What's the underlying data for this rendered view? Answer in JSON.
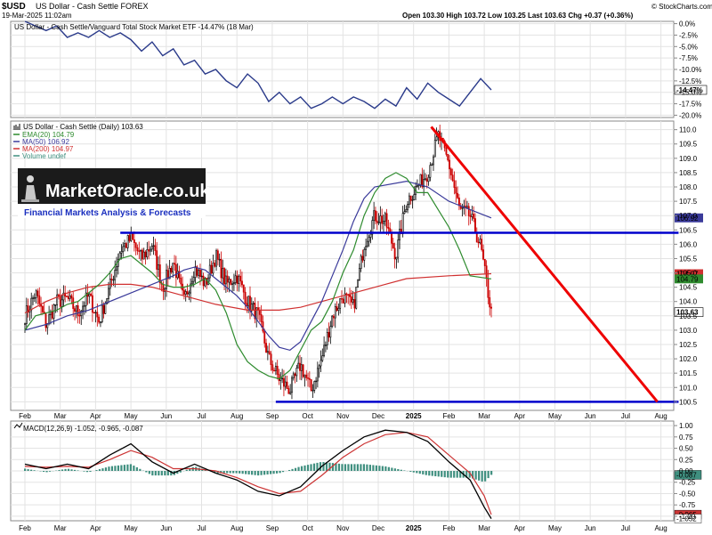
{
  "header": {
    "symbol": "$USD",
    "name": "US Dollar - Cash Settle FOREX",
    "date": "19-Mar-2025 11:02am",
    "quote": "Open 103.30  High 103.72  Low 103.25  Last 103.63  Chg +0.37 (+0.36%)",
    "credit": "© StockCharts.com"
  },
  "logo": {
    "brand": "MarketOracle.co.uk",
    "tagline": "Financial Markets Analysis & Forecasts"
  },
  "colors": {
    "price_up": "#000000",
    "price_down": "#cc0000",
    "ema20": "#2e8b2e",
    "ma50": "#3a3a9a",
    "ma200": "#d03030",
    "trend_red": "#ee0000",
    "support_blue": "#0000cc",
    "macd_line": "#000000",
    "signal_line": "#cc3333",
    "histogram": "#3f8f7f"
  },
  "chart_data": [
    {
      "type": "line",
      "panel": "relative-strength",
      "title": "US Dollar - Cash Settle/Vanguard Total Stock Market ETF -14.47% (18 Mar)",
      "y_ticks": [
        "0.0%",
        "-2.5%",
        "-5.0%",
        "-7.5%",
        "-10.0%",
        "-12.5%",
        "-15.0%",
        "-17.5%",
        "-20.0%"
      ],
      "ylim": [
        -20.5,
        0.5
      ],
      "last_label": "-14.47%",
      "series": [
        {
          "x": [
            0.0,
            0.3,
            0.6,
            0.9,
            1.2,
            1.5,
            1.8,
            2.1,
            2.4,
            2.7,
            3.0,
            3.3,
            3.6,
            3.9,
            4.2,
            4.5,
            4.8,
            5.1,
            5.4,
            5.7,
            6.0,
            6.3,
            6.6,
            6.9,
            7.2,
            7.5,
            7.8,
            8.1,
            8.4,
            8.7,
            9.0,
            9.3,
            9.6,
            9.9,
            10.2,
            10.5,
            10.8,
            11.1,
            11.4,
            11.7,
            12.0,
            12.3,
            12.6,
            12.9,
            13.2
          ],
          "values": [
            0.5,
            -0.5,
            -1.5,
            -0.5,
            -3.0,
            -2.0,
            -3.0,
            -1.5,
            -3.0,
            -2.0,
            -3.5,
            -6.0,
            -4.0,
            -7.0,
            -5.5,
            -9.0,
            -8.0,
            -11.0,
            -10.0,
            -12.5,
            -14.0,
            -11.0,
            -13.0,
            -17.0,
            -15.0,
            -17.5,
            -16.0,
            -18.5,
            -17.5,
            -16.0,
            -17.5,
            -16.0,
            -17.0,
            -18.5,
            -16.5,
            -18.0,
            -14.0,
            -16.5,
            -13.0,
            -15.0,
            -16.5,
            -18.0,
            -15.0,
            -12.0,
            -14.47
          ]
        }
      ]
    },
    {
      "type": "candlestick",
      "panel": "price",
      "title": "US Dollar - Cash Settle (Daily) 103.63",
      "legend": [
        {
          "label": "EMA(20) 104.79",
          "color": "#2e8b2e"
        },
        {
          "label": "MA(50) 106.92",
          "color": "#3a3a9a"
        },
        {
          "label": "MA(200) 104.97",
          "color": "#d03030"
        },
        {
          "label": "Volume undef",
          "color": "#3f8f7f"
        }
      ],
      "y_ticks": [
        "110.0",
        "109.5",
        "109.0",
        "108.5",
        "108.0",
        "107.5",
        "107.0",
        "106.5",
        "106.0",
        "105.5",
        "105.0",
        "104.5",
        "104.0",
        "103.5",
        "103.0",
        "102.5",
        "102.0",
        "101.5",
        "101.0",
        "100.5"
      ],
      "ylim": [
        100.2,
        110.3
      ],
      "price_labels": [
        {
          "value": 106.92,
          "text": "106.92",
          "color": "#3a3a9a"
        },
        {
          "value": 104.97,
          "text": "104.97",
          "color": "#d03030"
        },
        {
          "value": 104.79,
          "text": "104.79",
          "color": "#2e8b2e"
        },
        {
          "value": 103.63,
          "text": "103.63",
          "color": "#000000"
        }
      ],
      "x_labels": [
        "Feb",
        "Mar",
        "Apr",
        "May",
        "Jun",
        "Jul",
        "Aug",
        "Sep",
        "Oct",
        "Nov",
        "Dec",
        "2025",
        "Feb",
        "Mar",
        "Apr",
        "May",
        "Jun",
        "Jul",
        "Aug"
      ],
      "close_x": [
        0.0,
        0.3,
        0.6,
        0.9,
        1.2,
        1.5,
        1.8,
        2.1,
        2.4,
        2.7,
        3.0,
        3.3,
        3.6,
        3.9,
        4.2,
        4.5,
        4.8,
        5.1,
        5.4,
        5.7,
        6.0,
        6.3,
        6.6,
        6.9,
        7.2,
        7.5,
        7.8,
        8.1,
        8.4,
        8.7,
        9.0,
        9.3,
        9.6,
        9.9,
        10.2,
        10.5,
        10.8,
        11.1,
        11.4,
        11.7,
        12.0,
        12.3,
        12.6,
        12.9,
        13.2
      ],
      "close": [
        103.5,
        104.3,
        103.2,
        104.0,
        104.1,
        103.6,
        104.2,
        103.3,
        104.5,
        105.8,
        106.2,
        105.5,
        106.0,
        104.5,
        105.4,
        104.0,
        105.2,
        104.6,
        105.6,
        104.6,
        104.9,
        104.0,
        103.5,
        102.0,
        101.3,
        100.9,
        101.8,
        100.9,
        102.0,
        103.5,
        104.2,
        103.8,
        106.0,
        107.0,
        106.8,
        105.6,
        107.5,
        108.0,
        108.5,
        109.8,
        108.8,
        107.2,
        107.0,
        105.9,
        103.6
      ],
      "ema20": [
        103.0,
        103.5,
        103.6,
        103.7,
        103.9,
        104.0,
        104.3,
        104.6,
        105.0,
        105.5,
        105.6,
        105.3,
        105.0,
        104.6,
        104.5,
        104.5,
        104.6,
        104.8,
        104.4,
        103.6,
        102.5,
        101.9,
        101.6,
        101.4,
        101.3,
        101.6,
        102.3,
        103.0,
        103.3,
        104.0,
        105.0,
        105.8,
        107.0,
        107.8,
        108.3,
        108.5,
        108.3,
        107.8,
        107.8,
        107.2,
        106.6,
        105.8,
        104.9,
        104.79
      ],
      "ema20_x": [
        0.0,
        0.3,
        0.6,
        0.9,
        1.2,
        1.5,
        1.8,
        2.1,
        2.4,
        2.7,
        3.0,
        3.3,
        3.6,
        3.9,
        4.2,
        4.5,
        4.8,
        5.1,
        5.4,
        5.7,
        6.0,
        6.3,
        6.6,
        6.9,
        7.2,
        7.5,
        7.8,
        8.1,
        8.4,
        8.7,
        9.0,
        9.3,
        9.6,
        9.9,
        10.2,
        10.5,
        10.8,
        11.1,
        11.4,
        11.7,
        12.0,
        12.3,
        12.6,
        13.2
      ],
      "ma50": [
        103.0,
        103.2,
        103.5,
        103.7,
        104.0,
        104.3,
        104.6,
        104.9,
        105.1,
        105.2,
        105.1,
        104.8,
        104.5,
        104.2,
        103.8,
        103.3,
        102.8,
        102.4,
        102.3,
        102.6,
        103.3,
        104.0,
        104.9,
        105.8,
        106.8,
        107.6,
        108.0,
        108.2,
        108.0,
        107.5,
        106.92
      ],
      "ma50_x": [
        0.0,
        0.6,
        1.2,
        1.8,
        2.4,
        3.0,
        3.6,
        4.2,
        4.5,
        4.8,
        5.1,
        5.4,
        5.7,
        6.0,
        6.3,
        6.6,
        6.9,
        7.2,
        7.5,
        7.8,
        8.1,
        8.4,
        8.7,
        9.0,
        9.3,
        9.6,
        9.9,
        10.8,
        11.4,
        12.0,
        13.2
      ],
      "ma200": [
        103.6,
        104.0,
        104.3,
        104.5,
        104.6,
        104.6,
        104.5,
        104.2,
        103.9,
        103.7,
        103.7,
        103.8,
        104.0,
        104.2,
        104.4,
        104.6,
        104.8,
        104.9,
        104.97
      ],
      "ma200_x": [
        0.0,
        0.6,
        1.2,
        1.8,
        2.4,
        3.0,
        3.6,
        4.5,
        5.4,
        6.3,
        7.2,
        7.8,
        8.4,
        9.0,
        9.6,
        10.2,
        10.8,
        12.0,
        13.2
      ],
      "annotations": [
        {
          "kind": "horizontal",
          "value": 106.4,
          "x1": 2.7,
          "x2": 18.5,
          "color": "#0000cc"
        },
        {
          "kind": "horizontal",
          "value": 100.5,
          "x1": 7.1,
          "x2": 18.5,
          "color": "#0000cc"
        },
        {
          "kind": "trendline",
          "from": [
            11.5,
            110.1
          ],
          "to": [
            17.9,
            100.5
          ],
          "color": "#ee0000"
        }
      ]
    },
    {
      "type": "line",
      "panel": "macd",
      "title": "MACD(12,26,9) -1.052, -0.965, -0.087",
      "y_ticks": [
        "1.00",
        "0.75",
        "0.50",
        "0.25",
        "0.00",
        "-0.25",
        "-0.50",
        "-0.75",
        "-1.00"
      ],
      "ylim": [
        -1.1,
        1.1
      ],
      "price_labels": [
        {
          "value": -0.087,
          "text": "-0.087",
          "color": "#3f8f7f"
        },
        {
          "value": -0.965,
          "text": "-0.965",
          "color": "#cc3333"
        },
        {
          "value": -1.052,
          "text": "-1.052",
          "color": "#000000"
        }
      ],
      "x_labels": [
        "Feb",
        "Mar",
        "Apr",
        "May",
        "Jun",
        "Jul",
        "Aug",
        "Sep",
        "Oct",
        "Nov",
        "Dec",
        "2025",
        "Feb",
        "Mar",
        "Apr",
        "May",
        "Jun",
        "Jul",
        "Aug"
      ],
      "x": [
        0.0,
        0.6,
        1.2,
        1.8,
        2.4,
        3.0,
        3.6,
        4.2,
        4.8,
        5.4,
        6.0,
        6.6,
        7.2,
        7.8,
        8.4,
        9.0,
        9.6,
        10.2,
        10.8,
        11.4,
        12.0,
        12.6,
        13.0,
        13.2
      ],
      "macd": [
        0.15,
        0.05,
        0.15,
        0.05,
        0.35,
        0.6,
        0.2,
        -0.05,
        0.15,
        -0.05,
        -0.2,
        -0.45,
        -0.55,
        -0.35,
        0.1,
        0.45,
        0.75,
        0.9,
        0.85,
        0.65,
        0.2,
        -0.2,
        -0.8,
        -1.052
      ],
      "signal": [
        0.1,
        0.08,
        0.1,
        0.08,
        0.25,
        0.45,
        0.3,
        0.05,
        0.05,
        0.0,
        -0.15,
        -0.35,
        -0.5,
        -0.45,
        -0.1,
        0.3,
        0.6,
        0.8,
        0.85,
        0.75,
        0.35,
        -0.05,
        -0.55,
        -0.965
      ],
      "histogram": [
        0.05,
        -0.03,
        0.05,
        -0.03,
        0.1,
        0.15,
        -0.1,
        -0.1,
        0.1,
        -0.05,
        -0.05,
        -0.1,
        -0.05,
        0.1,
        0.2,
        0.15,
        0.15,
        0.1,
        0.0,
        -0.1,
        -0.15,
        -0.15,
        -0.25,
        -0.087
      ]
    }
  ]
}
